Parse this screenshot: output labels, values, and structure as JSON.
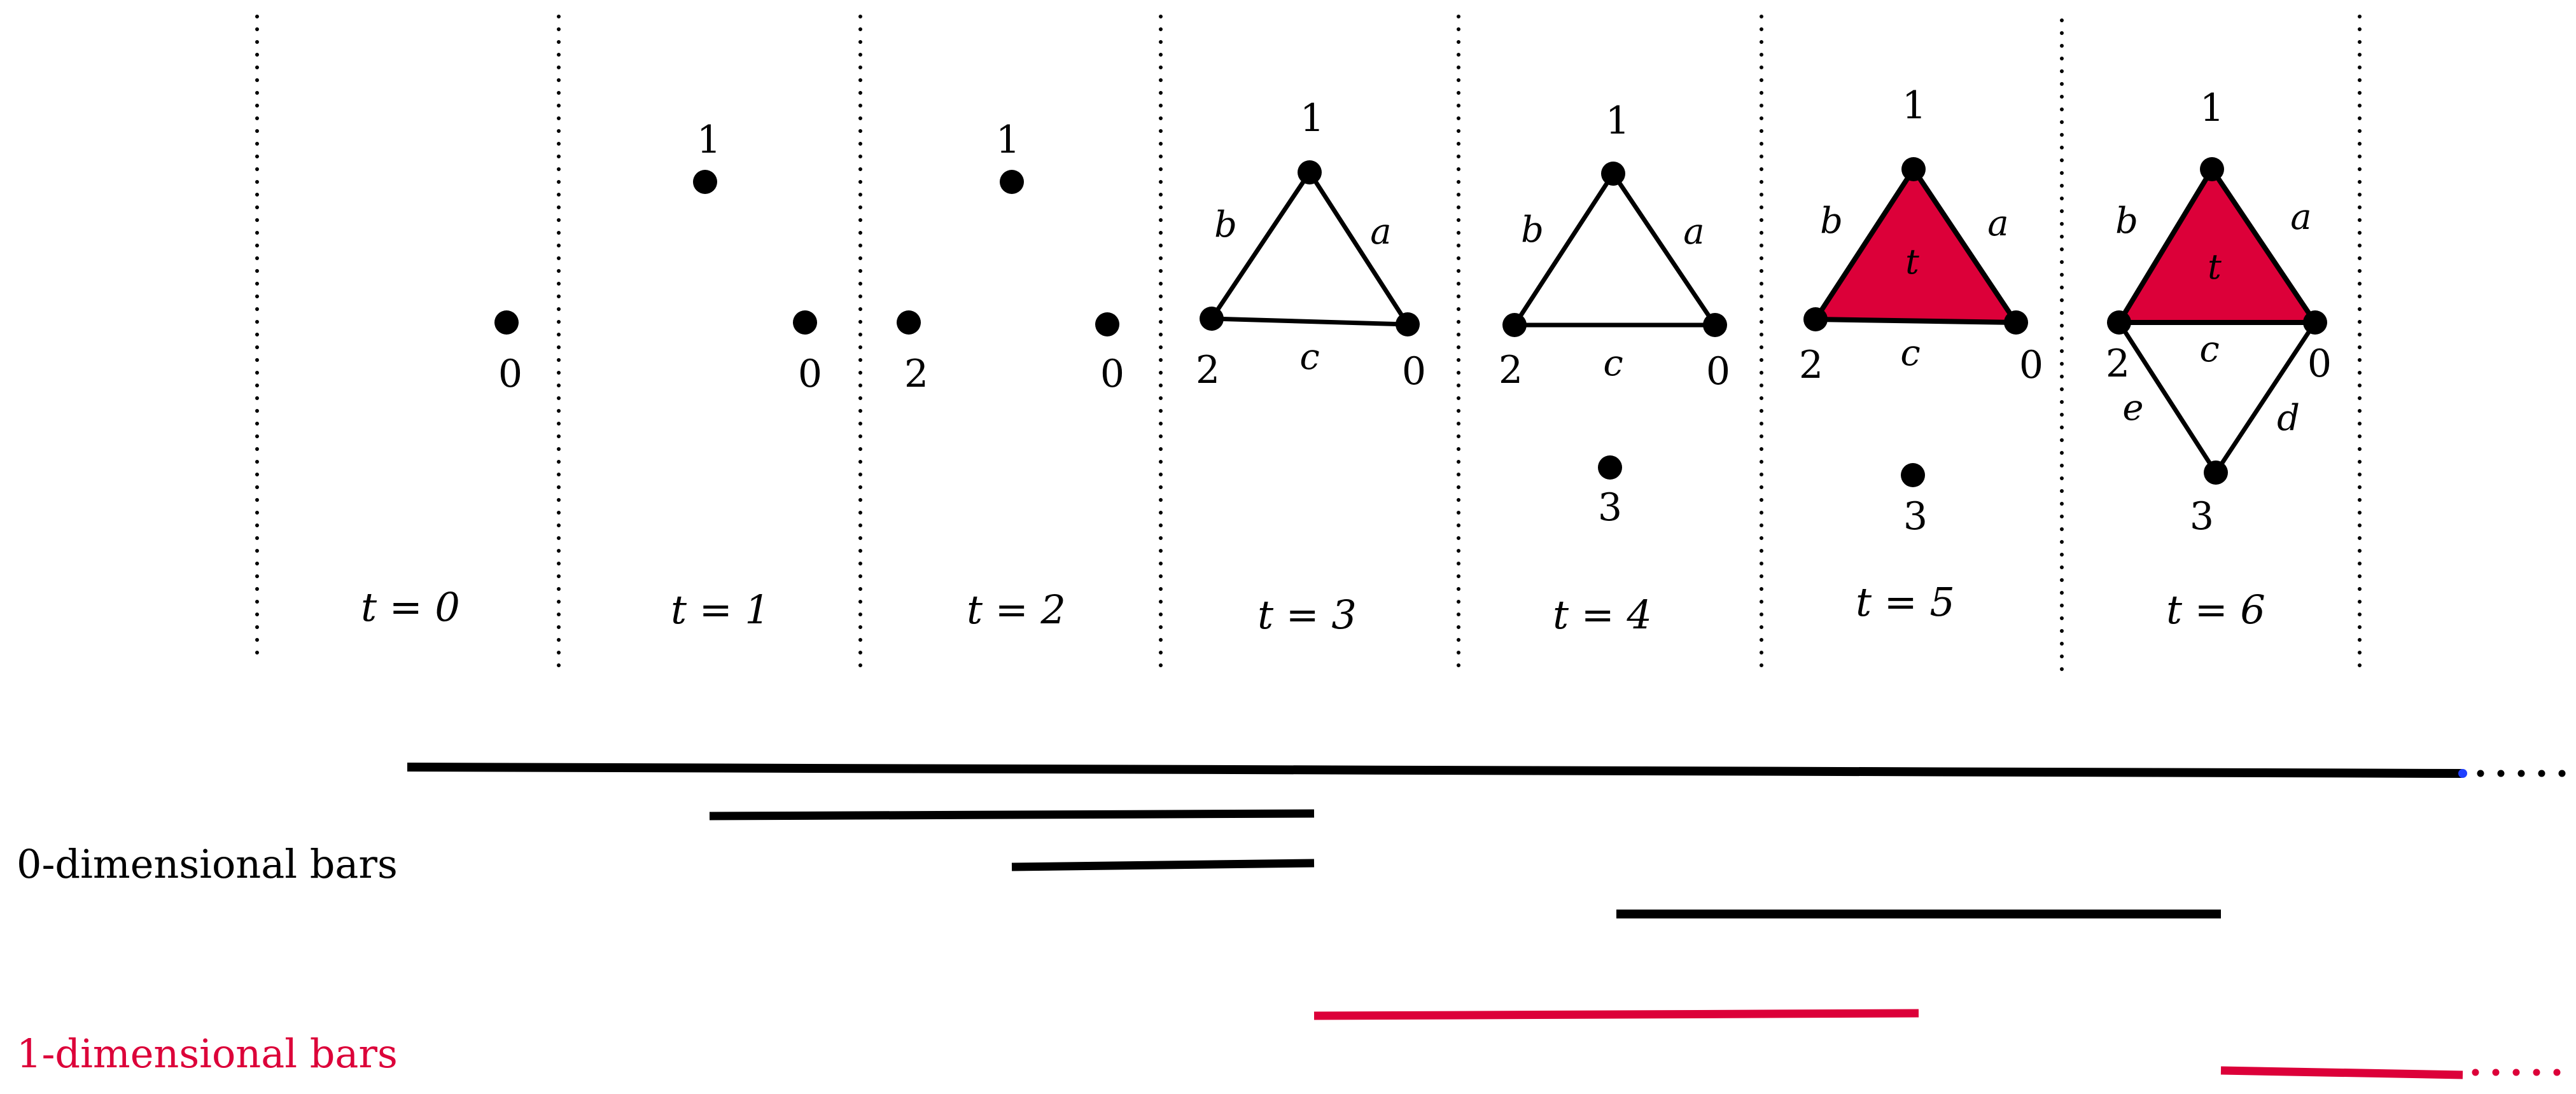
{
  "colors": {
    "ink": "#000000",
    "accent": "#dc0039",
    "marker": "#1f3fff"
  },
  "panels": [
    {
      "time": "t = 0",
      "vertices": [
        {
          "id": "v0",
          "label": "0"
        }
      ],
      "edges": [],
      "triangles": []
    },
    {
      "time": "t = 1",
      "vertices": [
        {
          "id": "v1",
          "label": "1"
        },
        {
          "id": "v0",
          "label": "0"
        }
      ],
      "edges": [],
      "triangles": []
    },
    {
      "time": "t = 2",
      "vertices": [
        {
          "id": "v1",
          "label": "1"
        },
        {
          "id": "v2",
          "label": "2"
        },
        {
          "id": "v0",
          "label": "0"
        }
      ],
      "edges": [],
      "triangles": []
    },
    {
      "time": "t = 3",
      "vertices": [
        {
          "id": "v1",
          "label": "1"
        },
        {
          "id": "v2",
          "label": "2"
        },
        {
          "id": "v0",
          "label": "0"
        }
      ],
      "edges": [
        {
          "id": "a",
          "label": "a"
        },
        {
          "id": "b",
          "label": "b"
        },
        {
          "id": "c",
          "label": "c"
        }
      ],
      "triangles": []
    },
    {
      "time": "t = 4",
      "vertices": [
        {
          "id": "v1",
          "label": "1"
        },
        {
          "id": "v2",
          "label": "2"
        },
        {
          "id": "v0",
          "label": "0"
        },
        {
          "id": "v3",
          "label": "3"
        }
      ],
      "edges": [
        {
          "id": "a",
          "label": "a"
        },
        {
          "id": "b",
          "label": "b"
        },
        {
          "id": "c",
          "label": "c"
        }
      ],
      "triangles": []
    },
    {
      "time": "t = 5",
      "vertices": [
        {
          "id": "v1",
          "label": "1"
        },
        {
          "id": "v2",
          "label": "2"
        },
        {
          "id": "v0",
          "label": "0"
        },
        {
          "id": "v3",
          "label": "3"
        }
      ],
      "edges": [
        {
          "id": "a",
          "label": "a"
        },
        {
          "id": "b",
          "label": "b"
        },
        {
          "id": "c",
          "label": "c"
        }
      ],
      "triangles": [
        {
          "id": "t",
          "label": "t"
        }
      ]
    },
    {
      "time": "t = 6",
      "vertices": [
        {
          "id": "v1",
          "label": "1"
        },
        {
          "id": "v2",
          "label": "2"
        },
        {
          "id": "v0",
          "label": "0"
        },
        {
          "id": "v3",
          "label": "3"
        }
      ],
      "edges": [
        {
          "id": "a",
          "label": "a"
        },
        {
          "id": "b",
          "label": "b"
        },
        {
          "id": "c",
          "label": "c"
        },
        {
          "id": "d",
          "label": "d"
        },
        {
          "id": "e",
          "label": "e"
        }
      ],
      "triangles": [
        {
          "id": "t",
          "label": "t"
        }
      ]
    }
  ],
  "barcode": {
    "zero_dim_label": "0-dimensional bars",
    "one_dim_label": "1-dimensional bars",
    "zero_dim_bars": [
      {
        "birth": 0,
        "death": null
      },
      {
        "birth": 1,
        "death": 3
      },
      {
        "birth": 2,
        "death": 3
      },
      {
        "birth": 4,
        "death": 6
      }
    ],
    "one_dim_bars": [
      {
        "birth": 3,
        "death": 5
      },
      {
        "birth": 6,
        "death": null
      }
    ]
  }
}
